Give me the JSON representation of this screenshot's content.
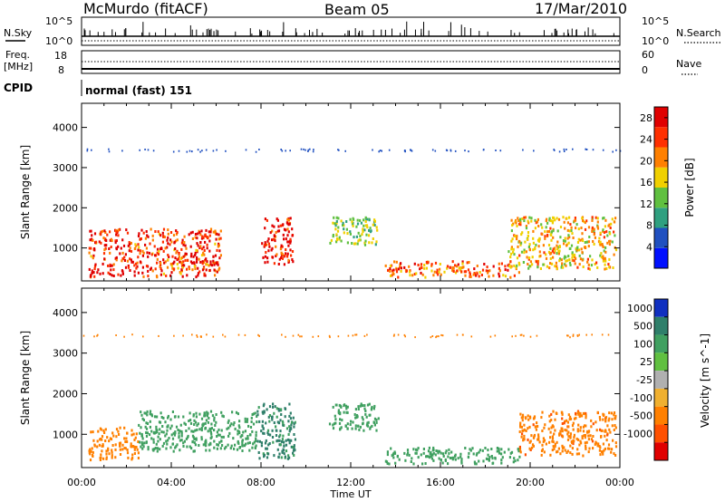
{
  "header": {
    "station": "McMurdo (fitACF)",
    "beam": "Beam 05",
    "date": "17/Mar/2010"
  },
  "params_panel": {
    "nsky_label": "N.Sky",
    "nsky_ticks": [
      "10^5",
      "10^0"
    ],
    "nsearch_label": "N.Search",
    "nsearch_ticks": [
      "10^5",
      "10^0"
    ],
    "freq_label_line1": "Freq.",
    "freq_label_line2": "[MHz]",
    "freq_ticks": [
      "18",
      "8"
    ],
    "nave_label": "Nave",
    "nave_ticks": [
      "60",
      "0"
    ]
  },
  "cpid": {
    "label": "CPID",
    "value": "normal (fast) 151"
  },
  "chart_data": [
    {
      "type": "heatmap",
      "panel": "power",
      "xlabel": "Time UT",
      "ylabel": "Slant Range [km]",
      "x_ticks": [
        "00:00",
        "04:00",
        "08:00",
        "12:00",
        "16:00",
        "20:00",
        "00:00"
      ],
      "xlim_hours": [
        0,
        24
      ],
      "y_ticks": [
        1000,
        2000,
        3000,
        4000
      ],
      "ylim": [
        180,
        4600
      ],
      "colorbar_label": "Power [dB]",
      "colorbar_ticks": [
        4,
        8,
        12,
        16,
        20,
        24,
        28
      ],
      "colorbar_range": [
        0,
        30
      ],
      "colors": [
        "#0010ff",
        "#2050c0",
        "#30a080",
        "#60c040",
        "#f0d000",
        "#ff8000",
        "#ff3000",
        "#e00000"
      ],
      "regions": [
        {
          "t0": 0.3,
          "t1": 6.2,
          "r0": 300,
          "r1": 1500,
          "value": 26
        },
        {
          "t0": 8.0,
          "t1": 9.4,
          "r0": 600,
          "r1": 1800,
          "value": 28
        },
        {
          "t0": 11.0,
          "t1": 13.2,
          "r0": 1100,
          "r1": 1800,
          "value": 14
        },
        {
          "t0": 13.5,
          "t1": 19.5,
          "r0": 300,
          "r1": 700,
          "value": 22
        },
        {
          "t0": 19.0,
          "t1": 23.8,
          "r0": 500,
          "r1": 1800,
          "value": 18
        }
      ]
    },
    {
      "type": "heatmap",
      "panel": "velocity",
      "xlabel": "Time UT",
      "ylabel": "Slant Range [km]",
      "x_ticks": [
        "00:00",
        "04:00",
        "08:00",
        "12:00",
        "16:00",
        "20:00",
        "00:00"
      ],
      "xlim_hours": [
        0,
        24
      ],
      "y_ticks": [
        1000,
        2000,
        3000,
        4000
      ],
      "ylim": [
        180,
        4600
      ],
      "colorbar_label": "Velocity [m s^-1]",
      "colorbar_ticks": [
        "1000",
        "500",
        "100",
        "25",
        "-25",
        "-100",
        "-500",
        "-1000"
      ],
      "colors": [
        "#1030c0",
        "#2f7f6a",
        "#40a060",
        "#60c040",
        "#b0b0b0",
        "#f0b030",
        "#ff8000",
        "#ff5000",
        "#e00000"
      ],
      "regions": [
        {
          "t0": 0.3,
          "t1": 2.5,
          "r0": 400,
          "r1": 1200,
          "value": -300
        },
        {
          "t0": 2.5,
          "t1": 7.8,
          "r0": 600,
          "r1": 1600,
          "value": 200
        },
        {
          "t0": 7.8,
          "t1": 9.5,
          "r0": 400,
          "r1": 1800,
          "value": 600
        },
        {
          "t0": 11.0,
          "t1": 13.2,
          "r0": 1100,
          "r1": 1800,
          "value": 200
        },
        {
          "t0": 13.5,
          "t1": 19.5,
          "r0": 300,
          "r1": 700,
          "value": 300
        },
        {
          "t0": 19.5,
          "t1": 23.8,
          "r0": 500,
          "r1": 1600,
          "value": -400
        }
      ]
    }
  ]
}
